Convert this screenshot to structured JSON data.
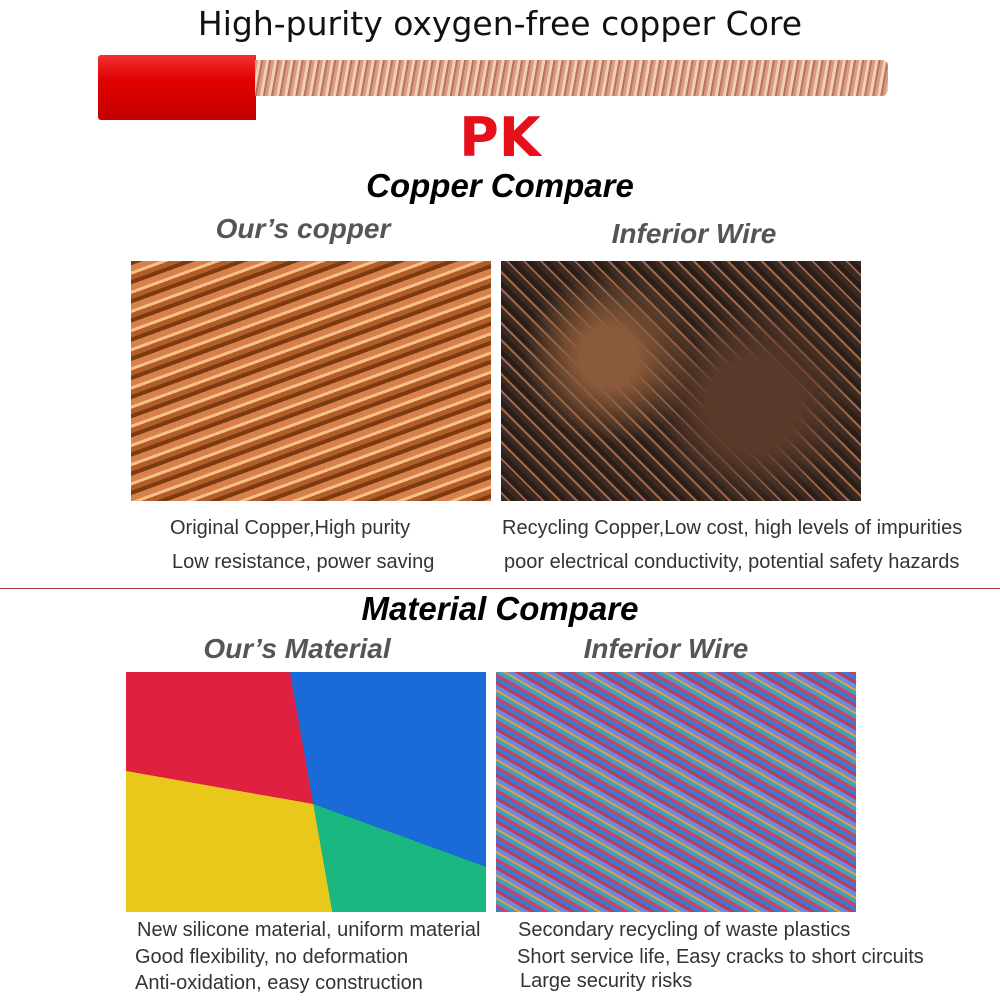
{
  "header": {
    "title": "High-purity oxygen-free copper Core",
    "pk": "PK"
  },
  "colors": {
    "accent": "#e5101a",
    "insulation": "#e00000",
    "divider": "#b23a48"
  },
  "copper_section": {
    "title": "Copper Compare",
    "ours": {
      "label": "Our’s copper",
      "lines": [
        "Original Copper,High purity",
        "Low resistance, power saving"
      ]
    },
    "inferior": {
      "label": "Inferior Wire",
      "lines": [
        "Recycling Copper,Low cost, high levels of impurities",
        "poor electrical conductivity, potential safety hazards"
      ]
    }
  },
  "material_section": {
    "title": "Material Compare",
    "ours": {
      "label": "Our’s Material",
      "lines": [
        "New silicone material, uniform material",
        "Good flexibility, no deformation",
        "Anti-oxidation, easy construction"
      ]
    },
    "inferior": {
      "label": "Inferior Wire",
      "lines": [
        "Secondary recycling of waste plastics",
        "Short service life, Easy cracks to short circuits",
        "Large security risks"
      ]
    }
  }
}
